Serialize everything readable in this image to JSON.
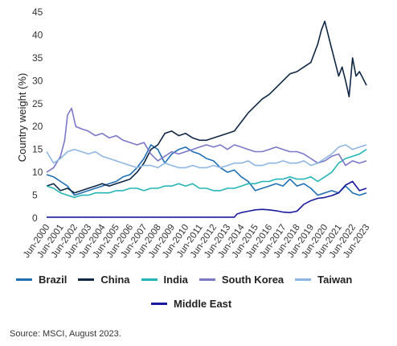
{
  "chart_data": {
    "type": "line",
    "ylabel": "Country weight (%)",
    "ylim": [
      0,
      45
    ],
    "yticks": [
      0,
      5,
      10,
      15,
      20,
      25,
      30,
      35,
      40,
      45
    ],
    "xlim": [
      2000.5,
      2023.5
    ],
    "xticks": [
      "Jun-2000",
      "Jun-2001",
      "Jun-2002",
      "Jun-2003",
      "Jun-2004",
      "Jun-2005",
      "Jun-2006",
      "Jun-2007",
      "Jun-2008",
      "Jun-2009",
      "Jun-2010",
      "Jun-2011",
      "Jun-2012",
      "Jun-2013",
      "Jun-2014",
      "Jun-2015",
      "Jun-2016",
      "Jun-2017",
      "Jun-2018",
      "Jun-2019",
      "Jun-2020",
      "Jun-2021",
      "Jun-2022",
      "Jun-2023"
    ],
    "grid": false,
    "legend_position": "bottom",
    "series": [
      {
        "name": "Brazil",
        "color": "#1f6fb2",
        "x": [
          2000.5,
          2001.0,
          2001.5,
          2002.0,
          2002.5,
          2003.0,
          2003.5,
          2004.0,
          2004.5,
          2005.0,
          2005.5,
          2006.0,
          2006.5,
          2007.0,
          2007.5,
          2008.0,
          2008.5,
          2009.0,
          2009.5,
          2010.0,
          2010.5,
          2011.0,
          2011.5,
          2012.0,
          2012.5,
          2013.0,
          2013.5,
          2014.0,
          2014.5,
          2015.0,
          2015.5,
          2016.0,
          2016.5,
          2017.0,
          2017.5,
          2018.0,
          2018.5,
          2019.0,
          2019.5,
          2020.0,
          2020.5,
          2021.0,
          2021.5,
          2022.0,
          2022.5,
          2023.0,
          2023.5
        ],
        "y": [
          9.5,
          9.0,
          8.0,
          7.0,
          5.0,
          5.5,
          6.0,
          6.5,
          7.0,
          7.5,
          8.0,
          9.0,
          9.5,
          11.0,
          13.0,
          16.0,
          15.0,
          12.0,
          14.0,
          15.0,
          15.5,
          14.5,
          14.0,
          13.0,
          12.5,
          11.0,
          10.0,
          10.5,
          9.0,
          8.0,
          6.0,
          6.5,
          7.0,
          7.5,
          7.0,
          8.5,
          7.0,
          7.5,
          6.5,
          5.0,
          5.5,
          6.0,
          5.5,
          7.0,
          5.5,
          5.0,
          5.5
        ]
      },
      {
        "name": "China",
        "color": "#0f2744",
        "x": [
          2000.5,
          2001.0,
          2001.5,
          2002.0,
          2002.5,
          2003.0,
          2003.5,
          2004.0,
          2004.5,
          2005.0,
          2005.5,
          2006.0,
          2006.5,
          2007.0,
          2007.5,
          2008.0,
          2008.5,
          2009.0,
          2009.5,
          2010.0,
          2010.5,
          2011.0,
          2011.5,
          2012.0,
          2012.5,
          2013.0,
          2013.5,
          2014.0,
          2014.5,
          2015.0,
          2015.5,
          2016.0,
          2016.5,
          2017.0,
          2017.5,
          2018.0,
          2018.5,
          2019.0,
          2019.5,
          2020.0,
          2020.25,
          2020.5,
          2020.75,
          2021.0,
          2021.25,
          2021.5,
          2021.75,
          2022.0,
          2022.25,
          2022.5,
          2022.75,
          2023.0,
          2023.25,
          2023.5
        ],
        "y": [
          7.0,
          7.5,
          6.0,
          6.5,
          5.5,
          6.0,
          6.5,
          7.0,
          7.5,
          7.0,
          7.5,
          8.0,
          8.5,
          10.0,
          12.0,
          15.0,
          16.0,
          18.5,
          19.0,
          18.0,
          18.5,
          17.5,
          17.0,
          17.0,
          17.5,
          18.0,
          18.5,
          19.0,
          21.0,
          23.0,
          24.5,
          26.0,
          27.0,
          28.5,
          30.0,
          31.5,
          32.0,
          33.0,
          34.0,
          38.0,
          41.0,
          43.0,
          40.0,
          37.0,
          34.0,
          31.0,
          33.0,
          30.0,
          26.5,
          35.0,
          31.0,
          32.0,
          30.5,
          29.0
        ]
      },
      {
        "name": "India",
        "color": "#26b5b5",
        "x": [
          2000.5,
          2001.0,
          2001.5,
          2002.0,
          2002.5,
          2003.0,
          2003.5,
          2004.0,
          2004.5,
          2005.0,
          2005.5,
          2006.0,
          2006.5,
          2007.0,
          2007.5,
          2008.0,
          2008.5,
          2009.0,
          2009.5,
          2010.0,
          2010.5,
          2011.0,
          2011.5,
          2012.0,
          2012.5,
          2013.0,
          2013.5,
          2014.0,
          2014.5,
          2015.0,
          2015.5,
          2016.0,
          2016.5,
          2017.0,
          2017.5,
          2018.0,
          2018.5,
          2019.0,
          2019.5,
          2020.0,
          2020.5,
          2021.0,
          2021.5,
          2022.0,
          2022.5,
          2023.0,
          2023.5
        ],
        "y": [
          7.0,
          6.5,
          5.5,
          5.0,
          4.5,
          5.0,
          5.0,
          5.5,
          5.5,
          5.5,
          6.0,
          6.0,
          6.5,
          6.5,
          6.0,
          6.5,
          6.5,
          7.0,
          7.0,
          7.5,
          7.0,
          7.5,
          6.5,
          6.5,
          6.0,
          6.0,
          6.5,
          6.5,
          7.0,
          7.5,
          7.5,
          8.0,
          8.0,
          8.5,
          8.5,
          9.0,
          8.5,
          8.5,
          9.0,
          8.0,
          9.0,
          10.0,
          12.0,
          13.0,
          13.5,
          14.0,
          15.0
        ]
      },
      {
        "name": "South Korea",
        "color": "#7b78c8",
        "x": [
          2000.5,
          2001.0,
          2001.5,
          2001.8,
          2002.0,
          2002.3,
          2002.6,
          2003.0,
          2003.5,
          2004.0,
          2004.5,
          2005.0,
          2005.5,
          2006.0,
          2006.5,
          2007.0,
          2007.5,
          2008.0,
          2008.5,
          2009.0,
          2009.5,
          2010.0,
          2010.5,
          2011.0,
          2011.5,
          2012.0,
          2012.5,
          2013.0,
          2013.5,
          2014.0,
          2014.5,
          2015.0,
          2015.5,
          2016.0,
          2016.5,
          2017.0,
          2017.5,
          2018.0,
          2018.5,
          2019.0,
          2019.5,
          2020.0,
          2020.5,
          2021.0,
          2021.5,
          2022.0,
          2022.5,
          2023.0,
          2023.5
        ],
        "y": [
          10.0,
          11.0,
          13.5,
          17.0,
          22.5,
          24.0,
          20.0,
          19.5,
          19.0,
          18.0,
          18.5,
          17.5,
          18.0,
          17.0,
          16.5,
          16.0,
          16.5,
          14.0,
          12.5,
          13.5,
          14.5,
          14.0,
          14.5,
          15.0,
          15.5,
          16.0,
          15.5,
          16.0,
          15.0,
          16.0,
          15.5,
          15.0,
          14.5,
          14.5,
          15.0,
          15.5,
          15.0,
          14.5,
          14.5,
          14.0,
          13.0,
          12.0,
          12.5,
          13.5,
          14.0,
          11.5,
          12.5,
          12.0,
          12.5
        ]
      },
      {
        "name": "Taiwan",
        "color": "#8fb6e3",
        "x": [
          2000.5,
          2001.0,
          2001.5,
          2002.0,
          2002.5,
          2003.0,
          2003.5,
          2004.0,
          2004.5,
          2005.0,
          2005.5,
          2006.0,
          2006.5,
          2007.0,
          2007.5,
          2008.0,
          2008.5,
          2009.0,
          2009.5,
          2010.0,
          2010.5,
          2011.0,
          2011.5,
          2012.0,
          2012.5,
          2013.0,
          2013.5,
          2014.0,
          2014.5,
          2015.0,
          2015.5,
          2016.0,
          2016.5,
          2017.0,
          2017.5,
          2018.0,
          2018.5,
          2019.0,
          2019.5,
          2020.0,
          2020.5,
          2021.0,
          2021.5,
          2022.0,
          2022.5,
          2023.0,
          2023.5
        ],
        "y": [
          14.5,
          12.0,
          13.0,
          14.5,
          15.0,
          14.5,
          14.0,
          14.5,
          13.5,
          13.0,
          12.5,
          12.0,
          11.5,
          11.0,
          11.5,
          11.5,
          11.0,
          12.0,
          11.5,
          11.0,
          11.0,
          11.5,
          11.0,
          11.0,
          11.5,
          11.0,
          11.5,
          12.0,
          12.0,
          12.5,
          11.5,
          11.5,
          12.0,
          12.0,
          12.5,
          12.0,
          12.0,
          12.5,
          11.5,
          12.0,
          13.0,
          14.0,
          15.5,
          16.0,
          15.0,
          15.5,
          16.0
        ]
      },
      {
        "name": "Middle East",
        "color": "#1a1a9c",
        "x": [
          2000.5,
          2001.0,
          2002.0,
          2003.0,
          2004.0,
          2005.0,
          2006.0,
          2007.0,
          2008.0,
          2009.0,
          2010.0,
          2011.0,
          2012.0,
          2013.0,
          2014.0,
          2014.2,
          2014.5,
          2015.0,
          2015.5,
          2016.0,
          2016.5,
          2017.0,
          2017.5,
          2018.0,
          2018.5,
          2019.0,
          2019.5,
          2020.0,
          2020.5,
          2021.0,
          2021.5,
          2022.0,
          2022.5,
          2023.0,
          2023.5
        ],
        "y": [
          0.2,
          0.2,
          0.2,
          0.2,
          0.2,
          0.2,
          0.2,
          0.2,
          0.2,
          0.2,
          0.2,
          0.2,
          0.2,
          0.2,
          0.2,
          0.9,
          1.2,
          1.5,
          1.8,
          1.9,
          1.8,
          1.6,
          1.3,
          1.2,
          1.5,
          3.0,
          3.8,
          4.3,
          4.5,
          4.9,
          5.5,
          7.2,
          8.0,
          6.0,
          6.5
        ]
      }
    ]
  },
  "source": "Source: MSCI, August 2023."
}
